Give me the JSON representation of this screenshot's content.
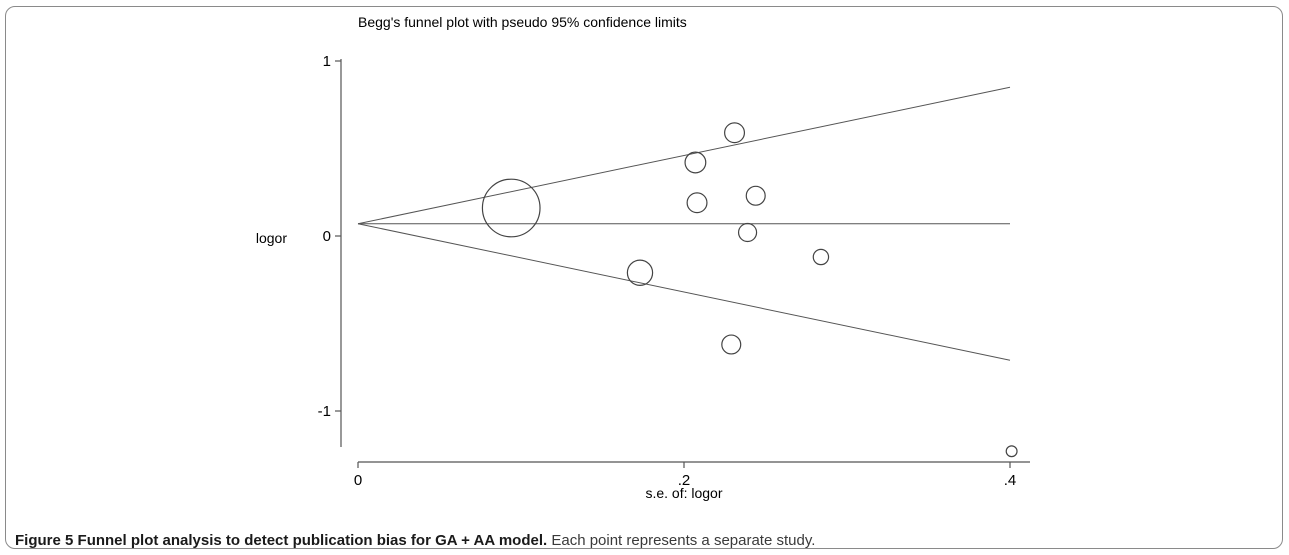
{
  "chart_data": {
    "type": "scatter",
    "title": "Begg's funnel plot with pseudo 95% confidence limits",
    "xlabel": "s.e. of: logor",
    "ylabel": "logor",
    "xlim": [
      0,
      0.4
    ],
    "ylim": [
      -1,
      1
    ],
    "x_ticks": [
      "0",
      ".2",
      ".4"
    ],
    "y_ticks": [
      "1",
      "0",
      "-1"
    ],
    "pooled_estimate": 0.07,
    "confidence_limits": {
      "upper_at_max_se": 0.85,
      "lower_at_max_se": -0.71
    },
    "points": [
      {
        "se": 0.094,
        "logor": 0.16,
        "size": 3.2
      },
      {
        "se": 0.173,
        "logor": -0.21,
        "size": 1.4
      },
      {
        "se": 0.207,
        "logor": 0.42,
        "size": 1.15
      },
      {
        "se": 0.208,
        "logor": 0.19,
        "size": 1.1
      },
      {
        "se": 0.229,
        "logor": -0.62,
        "size": 1.05
      },
      {
        "se": 0.231,
        "logor": 0.59,
        "size": 1.1
      },
      {
        "se": 0.239,
        "logor": 0.02,
        "size": 1.0
      },
      {
        "se": 0.244,
        "logor": 0.23,
        "size": 1.05
      },
      {
        "se": 0.284,
        "logor": -0.12,
        "size": 0.85
      },
      {
        "se": 0.401,
        "logor": -1.23,
        "size": 0.6
      }
    ]
  },
  "caption": {
    "label": "Figure 5",
    "bold_text": "Funnel plot analysis to detect publication bias for GA + AA model.",
    "text": "Each point represents a separate study."
  }
}
